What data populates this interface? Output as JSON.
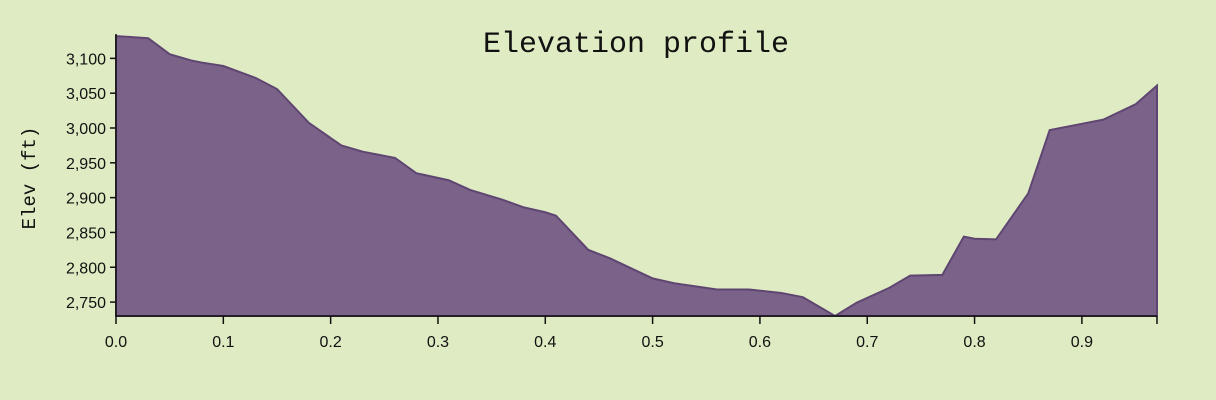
{
  "chart_data": {
    "type": "area",
    "title": "Elevation profile",
    "xlabel": "",
    "ylabel": "Elev (ft)",
    "xlim": [
      0,
      0.97
    ],
    "ylim": [
      2730,
      3135
    ],
    "xticks": [
      0.0,
      0.1,
      0.2,
      0.3,
      0.4,
      0.5,
      0.6,
      0.7,
      0.8,
      0.9
    ],
    "xtick_labels": [
      "0.0",
      "0.1",
      "0.2",
      "0.3",
      "0.4",
      "0.5",
      "0.6",
      "0.7",
      "0.8",
      "0.9"
    ],
    "yticks": [
      2750,
      2800,
      2850,
      2900,
      2950,
      3000,
      3050,
      3100
    ],
    "ytick_labels": [
      "2,750",
      "2,800",
      "2,850",
      "2,900",
      "2,950",
      "3,000",
      "3,050",
      "3,100"
    ],
    "grid": false,
    "colors": {
      "fill": "#7b6288",
      "stroke": "#5f4672",
      "background": "#dfebc2"
    },
    "x": [
      0.0,
      0.03,
      0.05,
      0.07,
      0.08,
      0.1,
      0.13,
      0.15,
      0.18,
      0.21,
      0.23,
      0.26,
      0.28,
      0.31,
      0.33,
      0.36,
      0.38,
      0.4,
      0.41,
      0.44,
      0.46,
      0.5,
      0.52,
      0.56,
      0.59,
      0.62,
      0.64,
      0.67,
      0.69,
      0.72,
      0.74,
      0.77,
      0.79,
      0.8,
      0.82,
      0.85,
      0.87,
      0.9,
      0.92,
      0.95,
      0.97
    ],
    "y": [
      3132,
      3129,
      3106,
      3097,
      3094,
      3089,
      3072,
      3056,
      3007,
      2975,
      2966,
      2957,
      2935,
      2925,
      2911,
      2897,
      2886,
      2879,
      2874,
      2825,
      2813,
      2784,
      2777,
      2768,
      2768,
      2763,
      2757,
      2730,
      2749,
      2770,
      2788,
      2789,
      2844,
      2841,
      2840,
      2906,
      2997,
      3006,
      3012,
      3034,
      3061
    ]
  }
}
